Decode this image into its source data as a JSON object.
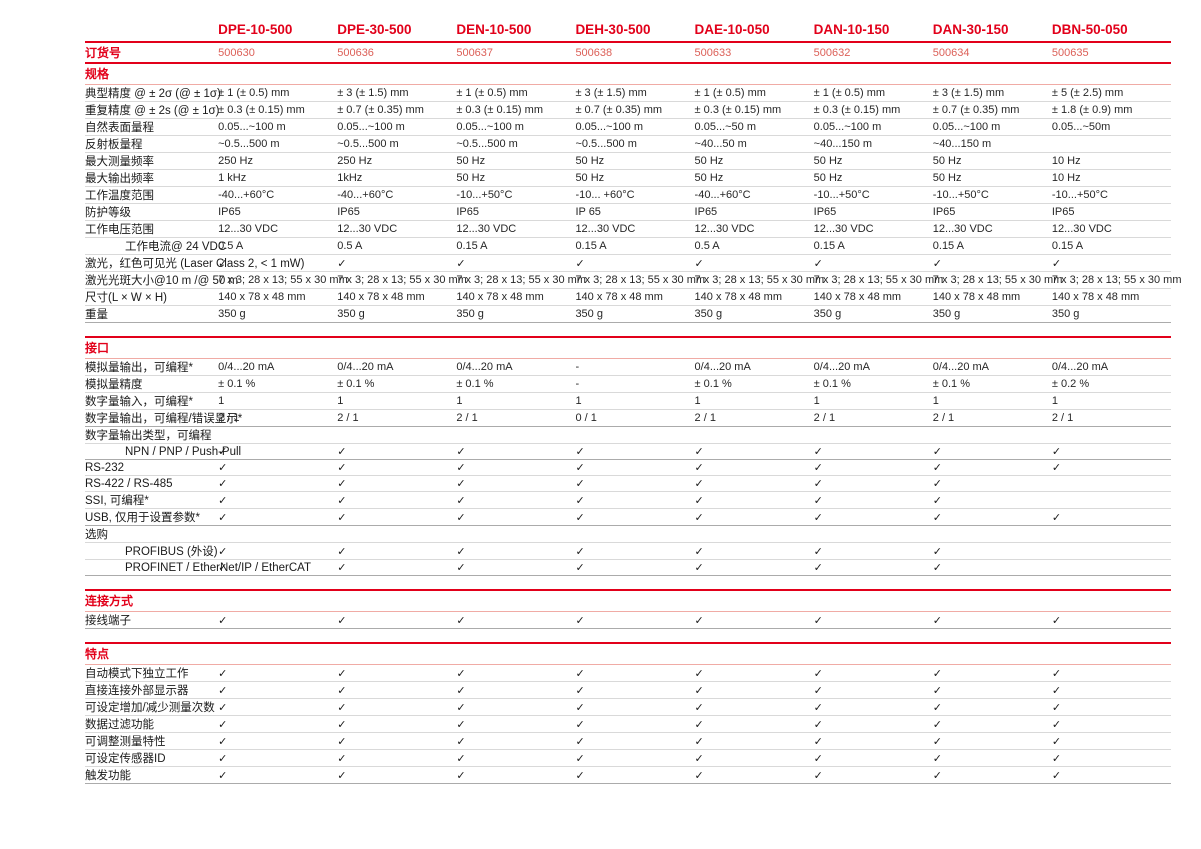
{
  "colors": {
    "accent": "#e2001a",
    "order_number": "#dc6058",
    "rule_light": "#f0aba5",
    "row_line": "#d9d9d9"
  },
  "icons": {
    "check": "✓"
  },
  "header": {
    "order_label": "订货号",
    "products": [
      {
        "name": "DPE-10-500",
        "order_no": "500630"
      },
      {
        "name": "DPE-30-500",
        "order_no": "500636"
      },
      {
        "name": "DEN-10-500",
        "order_no": "500637"
      },
      {
        "name": "DEH-30-500",
        "order_no": "500638"
      },
      {
        "name": "DAE-10-050",
        "order_no": "500633"
      },
      {
        "name": "DAN-10-150",
        "order_no": "500632"
      },
      {
        "name": "DAN-30-150",
        "order_no": "500634"
      },
      {
        "name": "DBN-50-050",
        "order_no": "500635"
      }
    ]
  },
  "sections": [
    {
      "title": "规格",
      "rows": [
        {
          "label": "典型精度 @ ± 2σ (@ ± 1σ)",
          "values": [
            "± 1 (± 0.5) mm",
            "± 3 (± 1.5) mm",
            "± 1 (± 0.5) mm",
            "± 3 (± 1.5) mm",
            "± 1 (± 0.5) mm",
            "± 1 (± 0.5) mm",
            "± 3 (± 1.5) mm",
            "± 5 (± 2.5) mm"
          ]
        },
        {
          "label": "重复精度 @ ± 2s (@ ± 1σ)",
          "values": [
            "± 0.3 (± 0.15) mm",
            "± 0.7 (± 0.35) mm",
            "± 0.3 (± 0.15) mm",
            "± 0.7 (± 0.35) mm",
            "± 0.3 (± 0.15) mm",
            "± 0.3 (± 0.15) mm",
            "± 0.7 (± 0.35) mm",
            "± 1.8 (± 0.9) mm"
          ]
        },
        {
          "label": "自然表面量程",
          "values": [
            "0.05...~100 m",
            "0.05...~100 m",
            "0.05...~100 m",
            "0.05...~100 m",
            "0.05...~50 m",
            "0.05...~100 m",
            "0.05...~100 m",
            "0.05...~50m"
          ]
        },
        {
          "label": "反射板量程",
          "values": [
            "~0.5...500 m",
            "~0.5...500 m",
            "~0.5...500 m",
            "~0.5...500 m",
            "~40...50 m",
            "~40...150 m",
            "~40...150 m",
            ""
          ]
        },
        {
          "label": "最大测量频率",
          "values": [
            "250 Hz",
            "250 Hz",
            "50 Hz",
            "50 Hz",
            "50 Hz",
            "50 Hz",
            "50 Hz",
            "10 Hz"
          ]
        },
        {
          "label": "最大输出频率",
          "values": [
            "1 kHz",
            "1kHz",
            "50 Hz",
            "50 Hz",
            "50 Hz",
            "50 Hz",
            "50 Hz",
            "10 Hz"
          ]
        },
        {
          "label": "工作温度范围",
          "values": [
            "-40...+60°C",
            "-40...+60°C",
            "-10...+50°C",
            "-10... +60°C",
            "-40...+60°C",
            "-10...+50°C",
            "-10...+50°C",
            "-10...+50°C"
          ]
        },
        {
          "label": "防护等级",
          "values": [
            "IP65",
            "IP65",
            "IP65",
            "IP 65",
            "IP65",
            "IP65",
            "IP65",
            "IP65"
          ]
        },
        {
          "label": "工作电压范围",
          "values": [
            "12...30 VDC",
            "12...30 VDC",
            "12...30 VDC",
            "12...30 VDC",
            "12...30 VDC",
            "12...30 VDC",
            "12...30 VDC",
            "12...30 VDC"
          ]
        },
        {
          "label": "工作电流@ 24 VDC",
          "indent": true,
          "values": [
            "0.5 A",
            "0.5 A",
            "0.15 A",
            "0.15 A",
            "0.5 A",
            "0.15 A",
            "0.15 A",
            "0.15 A"
          ]
        },
        {
          "label": "激光，红色可见光 (Laser Class 2, < 1 mW)",
          "values": [
            "✓",
            "✓",
            "✓",
            "✓",
            "✓",
            "✓",
            "✓",
            "✓"
          ]
        },
        {
          "label": "激光光斑大小@10 m /@ 50 m",
          "values": [
            "7 x 3; 28 x 13; 55 x 30 mm",
            "7 x 3; 28 x 13; 55 x 30 mm",
            "7 x 3; 28 x 13; 55 x 30 mm",
            "7 x 3; 28 x 13; 55 x 30 mm",
            "7 x 3; 28 x 13; 55 x 30 mm",
            "7 x 3; 28 x 13; 55 x 30 mm",
            "7 x 3; 28 x 13; 55 x 30 mm",
            "7 x 3; 28 x 13; 55 x 30 mm"
          ]
        },
        {
          "label": "尺寸(L × W × H)",
          "values": [
            "140 x 78 x 48 mm",
            "140 x 78 x 48 mm",
            "140 x 78 x 48 mm",
            "140 x 78 x 48 mm",
            "140 x 78 x 48 mm",
            "140 x 78 x 48 mm",
            "140 x 78 x 48 mm",
            "140 x 78 x 48 mm"
          ]
        },
        {
          "label": "重量",
          "strong": true,
          "values": [
            "350 g",
            "350 g",
            "350 g",
            "350 g",
            "350 g",
            "350 g",
            "350 g",
            "350 g"
          ]
        }
      ]
    },
    {
      "title": "接口",
      "rows": [
        {
          "label": "模拟量输出，可编程*",
          "values": [
            "0/4...20 mA",
            "0/4...20 mA",
            "0/4...20 mA",
            "-",
            "0/4...20 mA",
            "0/4...20 mA",
            "0/4...20 mA",
            "0/4...20 mA"
          ]
        },
        {
          "label": "模拟量精度",
          "values": [
            "± 0.1 %",
            "± 0.1 %",
            "± 0.1 %",
            "-",
            "± 0.1 %",
            "± 0.1 %",
            "± 0.1 %",
            "± 0.2 %"
          ]
        },
        {
          "label": "数字量输入，可编程*",
          "values": [
            "1",
            "1",
            "1",
            "1",
            "1",
            "1",
            "1",
            "1"
          ]
        },
        {
          "label": "数字量输出，可编程/错误显示*",
          "strong": true,
          "values": [
            "2 / 1",
            "2 / 1",
            "2 / 1",
            "0 / 1",
            "2 / 1",
            "2 / 1",
            "2 / 1",
            "2 / 1"
          ]
        },
        {
          "label": "数字量输出类型，可编程",
          "subheader": true,
          "values": [
            "",
            "",
            "",
            "",
            "",
            "",
            "",
            ""
          ]
        },
        {
          "label": "NPN / PNP / Push-Pull",
          "indent": true,
          "strong": true,
          "values": [
            "✓",
            "✓",
            "✓",
            "✓",
            "✓",
            "✓",
            "✓",
            "✓"
          ]
        },
        {
          "label": "RS-232",
          "values": [
            "✓",
            "✓",
            "✓",
            "✓",
            "✓",
            "✓",
            "✓",
            "✓"
          ]
        },
        {
          "label": "RS-422 / RS-485",
          "values": [
            "✓",
            "✓",
            "✓",
            "✓",
            "✓",
            "✓",
            "✓",
            ""
          ]
        },
        {
          "label": "SSI, 可编程*",
          "values": [
            "✓",
            "✓",
            "✓",
            "✓",
            "✓",
            "✓",
            "✓",
            ""
          ]
        },
        {
          "label": "USB, 仅用于设置参数*",
          "strong": true,
          "values": [
            "✓",
            "✓",
            "✓",
            "✓",
            "✓",
            "✓",
            "✓",
            "✓"
          ]
        },
        {
          "label": "选购",
          "subheader": true,
          "values": [
            "",
            "",
            "",
            "",
            "",
            "",
            "",
            ""
          ]
        },
        {
          "label": "PROFIBUS (外设)",
          "indent": true,
          "values": [
            "✓",
            "✓",
            "✓",
            "✓",
            "✓",
            "✓",
            "✓",
            ""
          ]
        },
        {
          "label": "PROFINET / EtherNet/IP / EtherCAT",
          "indent": true,
          "strong": true,
          "values": [
            "✓",
            "✓",
            "✓",
            "✓",
            "✓",
            "✓",
            "✓",
            ""
          ]
        }
      ]
    },
    {
      "title": "连接方式",
      "rows": [
        {
          "label": "接线端子",
          "strong": true,
          "values": [
            "✓",
            "✓",
            "✓",
            "✓",
            "✓",
            "✓",
            "✓",
            "✓"
          ]
        }
      ]
    },
    {
      "title": "特点",
      "rows": [
        {
          "label": "自动模式下独立工作",
          "values": [
            "✓",
            "✓",
            "✓",
            "✓",
            "✓",
            "✓",
            "✓",
            "✓"
          ]
        },
        {
          "label": "直接连接外部显示器",
          "values": [
            "✓",
            "✓",
            "✓",
            "✓",
            "✓",
            "✓",
            "✓",
            "✓"
          ]
        },
        {
          "label": "可设定增加/减少测量次数",
          "values": [
            "✓",
            "✓",
            "✓",
            "✓",
            "✓",
            "✓",
            "✓",
            "✓"
          ]
        },
        {
          "label": "数据过滤功能",
          "values": [
            "✓",
            "✓",
            "✓",
            "✓",
            "✓",
            "✓",
            "✓",
            "✓"
          ]
        },
        {
          "label": "可调整测量特性",
          "values": [
            "✓",
            "✓",
            "✓",
            "✓",
            "✓",
            "✓",
            "✓",
            "✓"
          ]
        },
        {
          "label": "可设定传感器ID",
          "values": [
            "✓",
            "✓",
            "✓",
            "✓",
            "✓",
            "✓",
            "✓",
            "✓"
          ]
        },
        {
          "label": "触发功能",
          "strong": true,
          "values": [
            "✓",
            "✓",
            "✓",
            "✓",
            "✓",
            "✓",
            "✓",
            "✓"
          ]
        }
      ]
    }
  ]
}
